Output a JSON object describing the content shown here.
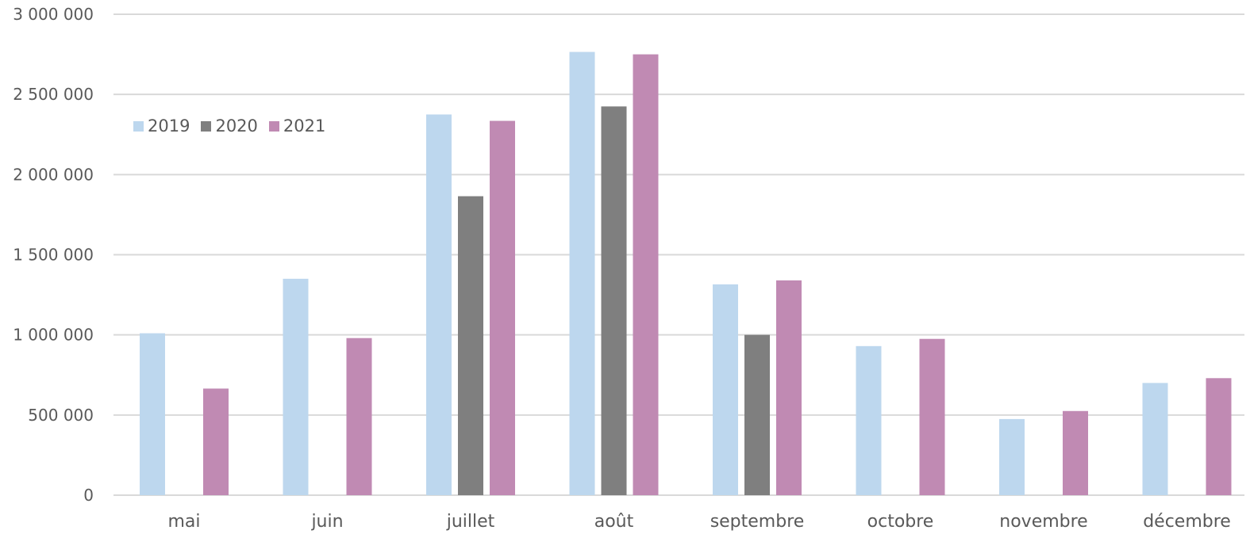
{
  "chart_data": {
    "type": "bar",
    "categories": [
      "mai",
      "juin",
      "juillet",
      "août",
      "septembre",
      "octobre",
      "novembre",
      "décembre"
    ],
    "series": [
      {
        "name": "2019",
        "color": "#bdd7ee",
        "values": [
          1010000,
          1350000,
          2375000,
          2765000,
          1315000,
          930000,
          475000,
          700000
        ]
      },
      {
        "name": "2020",
        "color": "#7f7f7f",
        "values": [
          null,
          null,
          1865000,
          2425000,
          1000000,
          null,
          null,
          null
        ]
      },
      {
        "name": "2021",
        "color": "#c08ab3",
        "values": [
          665000,
          980000,
          2335000,
          2750000,
          1340000,
          975000,
          525000,
          730000
        ]
      }
    ],
    "yticks": [
      "0",
      "500 000",
      "1 000 000",
      "1 500 000",
      "2 000 000",
      "2 500 000",
      "3 000 000"
    ],
    "ylim": [
      0,
      3000000
    ],
    "grid": true,
    "legend_position": "top-left",
    "title": "",
    "xlabel": "",
    "ylabel": ""
  }
}
